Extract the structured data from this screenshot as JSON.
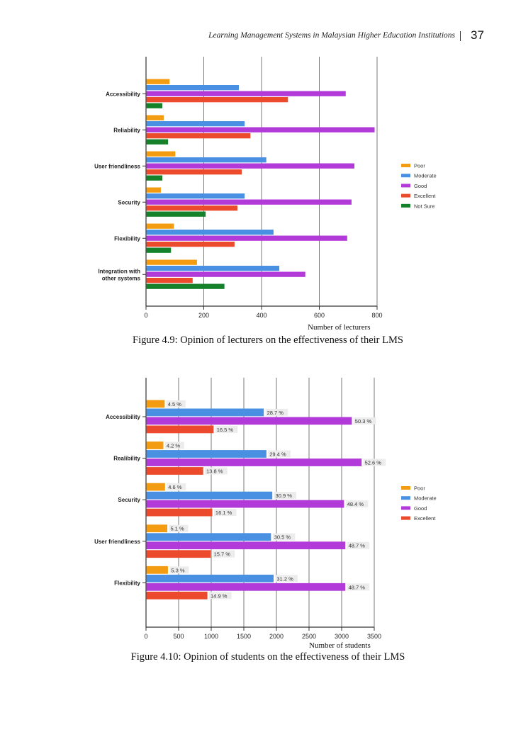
{
  "header": {
    "running_title": "Learning Management Systems in Malaysian Higher Education Institutions",
    "page_number": "37"
  },
  "figures": [
    {
      "caption": "Figure 4.9: Opinion of lecturers on the effectiveness of their LMS",
      "xlabel": "Number of lecturers"
    },
    {
      "caption": "Figure 4.10: Opinion of students on the effectiveness of their LMS",
      "xlabel": "Number of students"
    }
  ],
  "chart_data": [
    {
      "type": "bar",
      "orientation": "horizontal",
      "title": "",
      "xlabel": "Number of lecturers",
      "ylabel": "",
      "xlim": [
        0,
        800
      ],
      "xticks": [
        0,
        200,
        400,
        600,
        800
      ],
      "categories": [
        "Accessibility",
        "Reliability",
        "User friendliness",
        "Security",
        "Flexibility",
        "Integration with other systems"
      ],
      "category_lines": [
        [
          "Accessibility"
        ],
        [
          "Reliability"
        ],
        [
          "User friendliness"
        ],
        [
          "Security"
        ],
        [
          "Flexibility"
        ],
        [
          "Integration with",
          "other systems"
        ]
      ],
      "series": [
        {
          "name": "Poor",
          "color": "#f39c12",
          "values": [
            80,
            60,
            100,
            50,
            95,
            175
          ]
        },
        {
          "name": "Moderate",
          "color": "#4a90e2",
          "values": [
            320,
            340,
            415,
            340,
            440,
            460
          ]
        },
        {
          "name": "Good",
          "color": "#b23ad8",
          "values": [
            690,
            790,
            720,
            710,
            695,
            550
          ]
        },
        {
          "name": "Excellent",
          "color": "#ec4a2c",
          "values": [
            490,
            360,
            330,
            315,
            305,
            160
          ]
        },
        {
          "name": "Not Sure",
          "color": "#15812b",
          "values": [
            55,
            75,
            55,
            205,
            85,
            270
          ]
        }
      ],
      "grid": true,
      "legend": "right"
    },
    {
      "type": "bar",
      "orientation": "horizontal",
      "title": "",
      "xlabel": "Number of students",
      "ylabel": "",
      "xlim": [
        0,
        3500
      ],
      "xticks": [
        0,
        500,
        1000,
        1500,
        2000,
        2500,
        3000,
        3500
      ],
      "categories": [
        "Accessibility",
        "Realibility",
        "Security",
        "User friendliness",
        "Flexibility"
      ],
      "category_lines": [
        [
          "Accessibility"
        ],
        [
          "Realibility"
        ],
        [
          "Security"
        ],
        [
          "User friendliness"
        ],
        [
          "Flexibility"
        ]
      ],
      "series": [
        {
          "name": "Poor",
          "color": "#f39c12",
          "values": [
            280,
            260,
            285,
            320,
            330
          ],
          "labels": [
            "4.5 %",
            "4.2 %",
            "4.6 %",
            "5.1 %",
            "5.3 %"
          ]
        },
        {
          "name": "Moderate",
          "color": "#4a90e2",
          "values": [
            1800,
            1840,
            1930,
            1910,
            1950
          ],
          "labels": [
            "28.7 %",
            "29.4 %",
            "30.9 %",
            "30.5 %",
            "31.2 %"
          ]
        },
        {
          "name": "Good",
          "color": "#b23ad8",
          "values": [
            3150,
            3300,
            3030,
            3050,
            3050
          ],
          "labels": [
            "50.3 %",
            "52.6 %",
            "48.4 %",
            "48.7 %",
            "48.7 %"
          ]
        },
        {
          "name": "Excellent",
          "color": "#ec4a2c",
          "values": [
            1030,
            870,
            1010,
            985,
            935
          ],
          "labels": [
            "16.5 %",
            "13.8 %",
            "16.1 %",
            "15.7 %",
            "14.9 %"
          ]
        }
      ],
      "grid": true,
      "legend": "right"
    }
  ]
}
